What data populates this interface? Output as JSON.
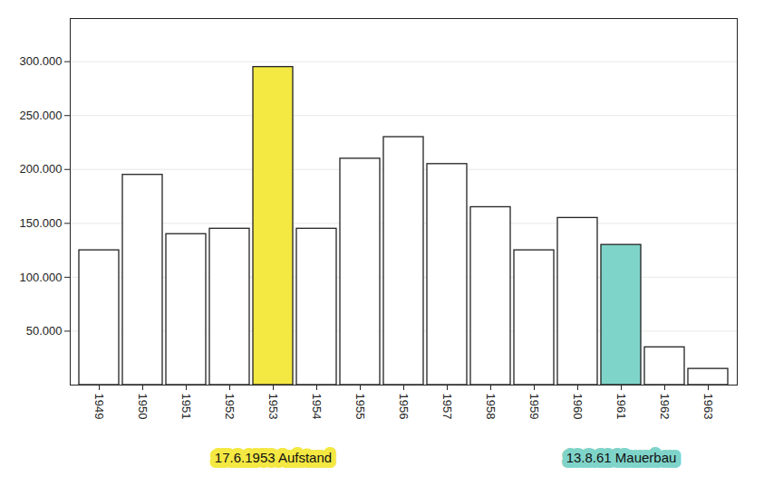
{
  "chart_data": {
    "type": "bar",
    "categories": [
      "1949",
      "1950",
      "1951",
      "1952",
      "1953",
      "1954",
      "1955",
      "1956",
      "1957",
      "1958",
      "1959",
      "1960",
      "1961",
      "1962",
      "1963"
    ],
    "values": [
      125000,
      195000,
      140000,
      145000,
      295000,
      145000,
      210000,
      230000,
      205000,
      165000,
      125000,
      155000,
      130000,
      35000,
      15000
    ],
    "colors": [
      "#ffffff",
      "#ffffff",
      "#ffffff",
      "#ffffff",
      "#f4e842",
      "#ffffff",
      "#ffffff",
      "#ffffff",
      "#ffffff",
      "#ffffff",
      "#ffffff",
      "#ffffff",
      "#7fd4c9",
      "#ffffff",
      "#ffffff"
    ],
    "ylim": [
      0,
      340000
    ],
    "yticks": [
      {
        "value": 50000,
        "label": "50.000"
      },
      {
        "value": 100000,
        "label": "100.000"
      },
      {
        "value": 150000,
        "label": "150.000"
      },
      {
        "value": 200000,
        "label": "200.000"
      },
      {
        "value": 250000,
        "label": "250.000"
      },
      {
        "value": 300000,
        "label": "300.000"
      }
    ],
    "grid": true,
    "annotations": [
      {
        "text": "17.6.1953 Aufstand",
        "category": "1953"
      },
      {
        "text": "13.8.61 Mauerbau",
        "category": "1961"
      }
    ]
  }
}
